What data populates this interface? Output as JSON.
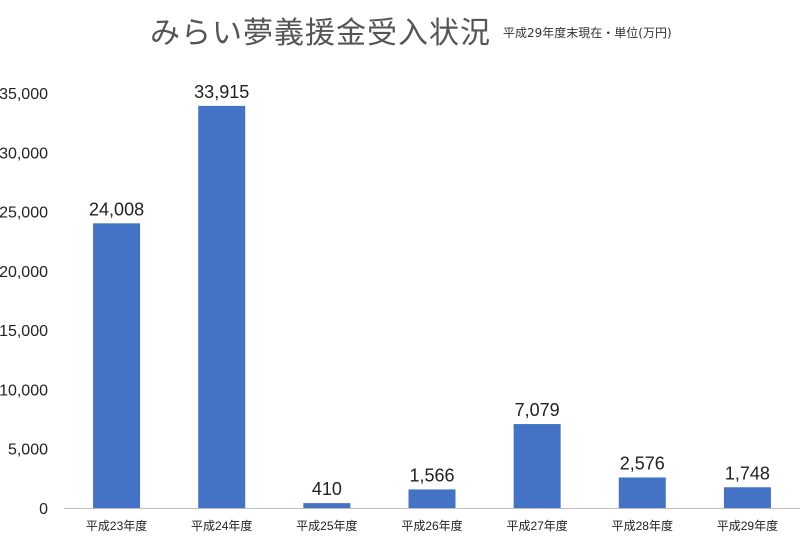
{
  "chart_data": {
    "type": "bar",
    "title": "みらい夢義援金受入状況",
    "subtitle": "平成29年度末現在・単位(万円)",
    "categories": [
      "平成23年度",
      "平成24年度",
      "平成25年度",
      "平成26年度",
      "平成27年度",
      "平成28年度",
      "平成29年度"
    ],
    "values": [
      24008,
      33915,
      410,
      1566,
      7079,
      2576,
      1748
    ],
    "value_labels": [
      "24,008",
      "33,915",
      "410",
      "1,566",
      "7,079",
      "2,576",
      "1,748"
    ],
    "yticks": [
      0,
      5000,
      10000,
      15000,
      20000,
      25000,
      30000,
      35000
    ],
    "ytick_labels": [
      "0",
      "5,000",
      "10,000",
      "15,000",
      "20,000",
      "25,000",
      "30,000",
      "35,000"
    ],
    "ylim": [
      0,
      35000
    ],
    "xlabel": "",
    "ylabel": "",
    "grid": false,
    "legend": "none",
    "bar_color": "#4472C4"
  }
}
